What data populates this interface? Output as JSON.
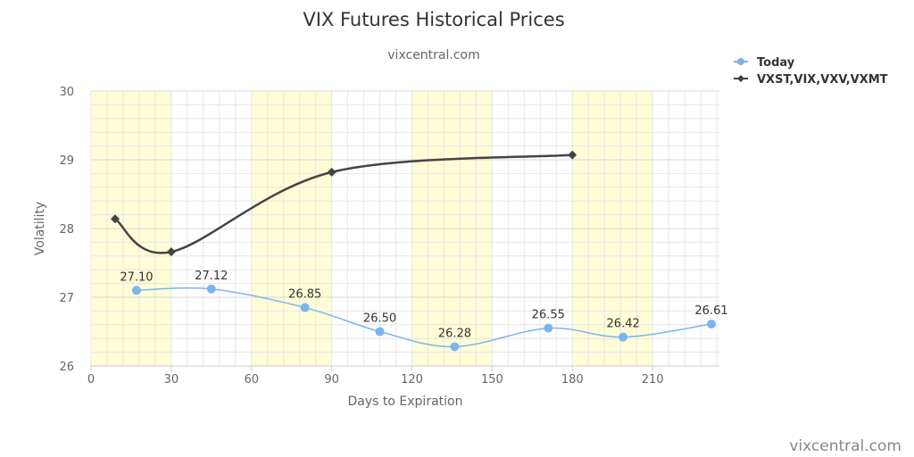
{
  "chart_data": {
    "type": "line",
    "title": "VIX Futures Historical Prices",
    "subtitle": "vixcentral.com",
    "xlabel": "Days to Expiration",
    "ylabel": "Volatility",
    "xlim": [
      0,
      235
    ],
    "ylim": [
      26,
      30
    ],
    "xticks": [
      0,
      30,
      60,
      90,
      120,
      150,
      180,
      210
    ],
    "yticks": [
      26,
      27,
      28,
      29,
      30
    ],
    "legend_position": "top-right",
    "shaded_bands": [
      [
        0,
        30
      ],
      [
        60,
        90
      ],
      [
        120,
        150
      ],
      [
        180,
        210
      ]
    ],
    "series": [
      {
        "name": "Today",
        "color": "#7cb5ec",
        "marker": "circle",
        "x": [
          17,
          45,
          80,
          108,
          136,
          171,
          199,
          232
        ],
        "values": [
          27.1,
          27.12,
          26.85,
          26.5,
          26.28,
          26.55,
          26.42,
          26.61
        ],
        "labels": [
          "27.10",
          "27.12",
          "26.85",
          "26.50",
          "26.28",
          "26.55",
          "26.42",
          "26.61"
        ]
      },
      {
        "name": "VXST,VIX,VXV,VXMT",
        "color": "#434348",
        "marker": "diamond",
        "x": [
          9,
          30,
          90,
          180
        ],
        "values": [
          28.14,
          27.66,
          28.82,
          29.07
        ]
      }
    ]
  },
  "credit": "vixcentral.com",
  "colors": {
    "band": "#fefdd5",
    "grid": "#e6e6e6",
    "axis": "#cccccc"
  }
}
